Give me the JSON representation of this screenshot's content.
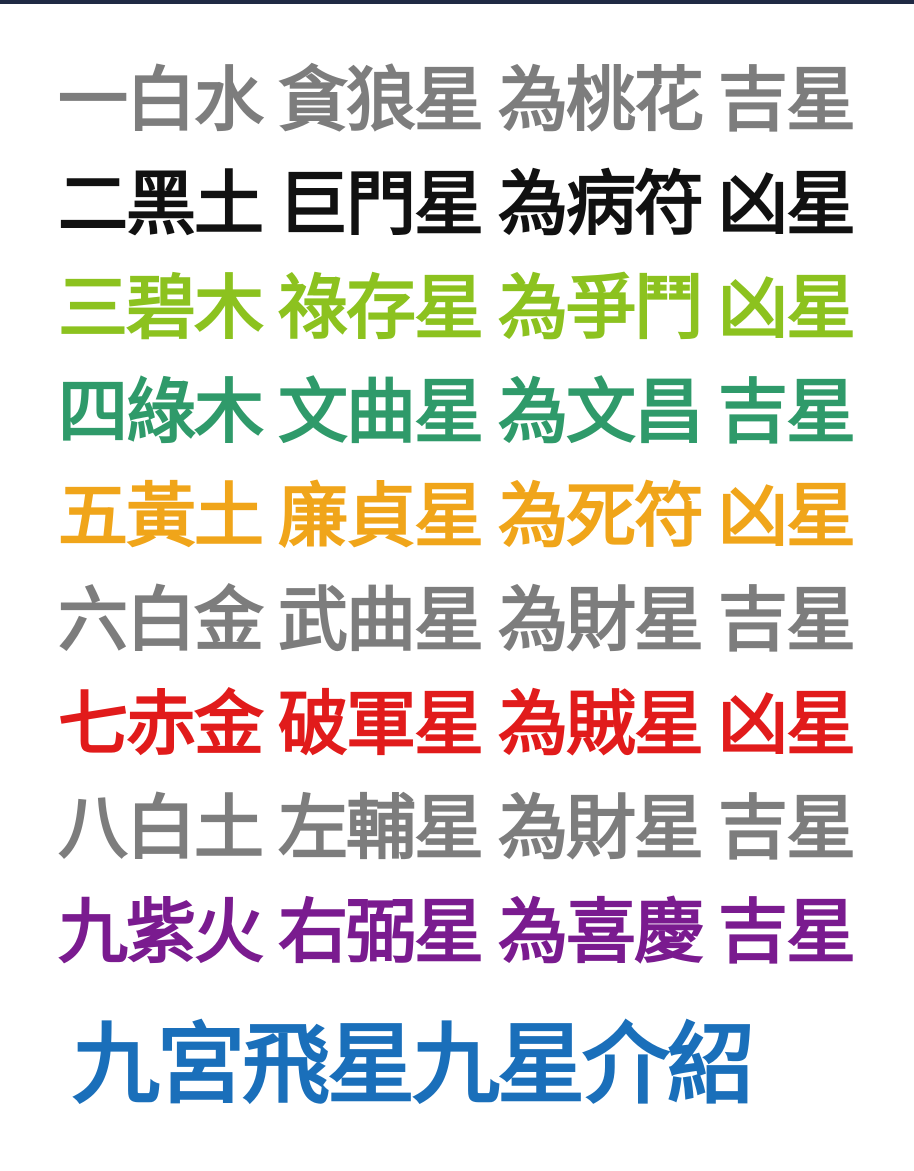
{
  "rows": [
    {
      "c1": "一白水",
      "c2": "貪狼星",
      "c3": "為桃花",
      "c4": "吉星",
      "color": "#7d7d7d"
    },
    {
      "c1": "二黑土",
      "c2": "巨門星",
      "c3": "為病符",
      "c4": "凶星",
      "color": "#111111"
    },
    {
      "c1": "三碧木",
      "c2": "祿存星",
      "c3": "為爭鬥",
      "c4": "凶星",
      "color": "#8cc21f"
    },
    {
      "c1": "四綠木",
      "c2": "文曲星",
      "c3": "為文昌",
      "c4": "吉星",
      "color": "#2f9a6a"
    },
    {
      "c1": "五黃土",
      "c2": "廉貞星",
      "c3": "為死符",
      "c4": "凶星",
      "color": "#f0a51a"
    },
    {
      "c1": "六白金",
      "c2": "武曲星",
      "c3": "為財星",
      "c4": "吉星",
      "color": "#7d7d7d"
    },
    {
      "c1": "七赤金",
      "c2": "破軍星",
      "c3": "為賊星",
      "c4": "凶星",
      "color": "#e11b1b"
    },
    {
      "c1": "八白土",
      "c2": "左輔星",
      "c3": "為財星",
      "c4": "吉星",
      "color": "#7d7d7d"
    },
    {
      "c1": "九紫火",
      "c2": "右弼星",
      "c3": "為喜慶",
      "c4": "吉星",
      "color": "#7a1b8f"
    }
  ],
  "footer": {
    "title": "九宮飛星九星介紹",
    "color": "#1a6fba"
  }
}
